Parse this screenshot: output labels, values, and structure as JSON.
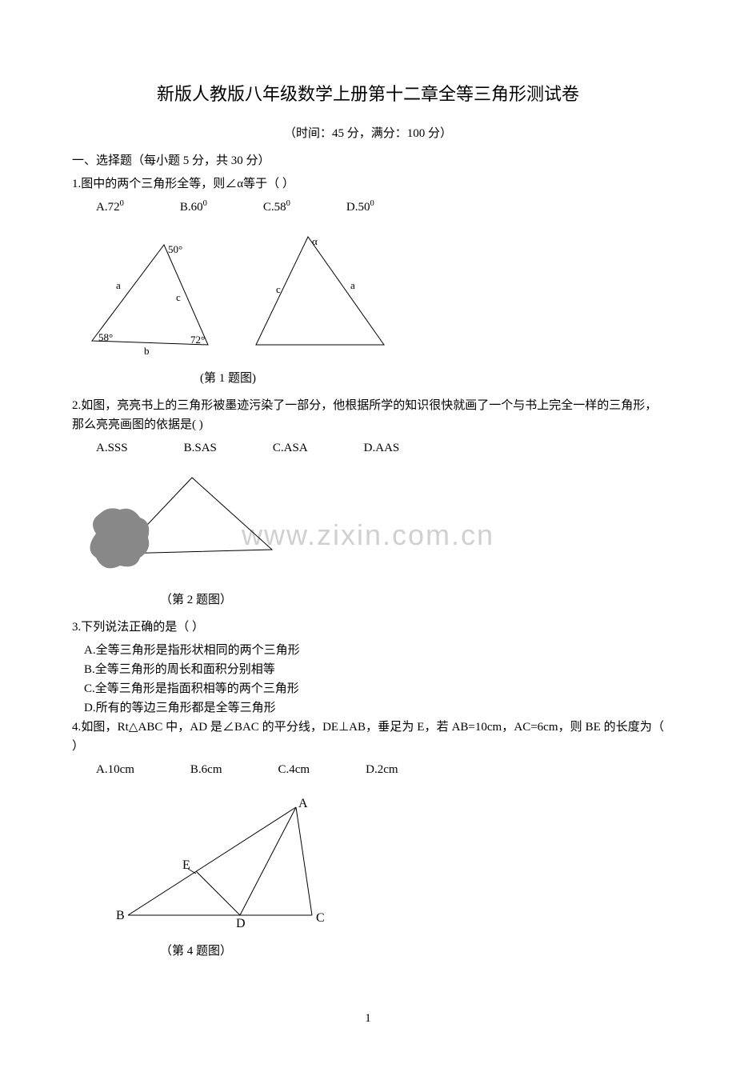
{
  "title": "新版人教版八年级数学上册第十二章全等三角形测试卷",
  "subtitle": "（时间：45 分，满分：100 分）",
  "section1": "一、选择题（每小题 5 分，共 30 分）",
  "q1": {
    "text": "1.图中的两个三角形全等，则∠α等于（  ）",
    "options": [
      "A.72⁰",
      "B.60⁰",
      "C.58⁰",
      "D.50⁰"
    ],
    "caption": "(第 1 题图)",
    "tri1": {
      "labels": {
        "top": "50°",
        "left": "58°",
        "right": "72°",
        "side_a": "a",
        "side_b": "b",
        "side_c": "c"
      }
    },
    "tri2": {
      "labels": {
        "top": "α",
        "side_c": "c",
        "side_a": "a"
      }
    }
  },
  "q2": {
    "text": "2.如图，亮亮书上的三角形被墨迹污染了一部分，他根据所学的知识很快就画了一个与书上完全一样的三角形，那么亮亮画图的依据是(   )",
    "options": [
      "A.SSS",
      "B.SAS",
      "C.ASA",
      "D.AAS"
    ],
    "caption": "（第 2 题图）"
  },
  "q3": {
    "text": "3.下列说法正确的是（    ）",
    "opts": [
      "A.全等三角形是指形状相同的两个三角形",
      "B.全等三角形的周长和面积分别相等",
      "C.全等三角形是指面积相等的两个三角形",
      "D.所有的等边三角形都是全等三角形"
    ]
  },
  "q4": {
    "text": "4.如图，Rt△ABC 中，AD 是∠BAC 的平分线，DE⊥AB，垂足为 E，若 AB=10cm，AC=6cm，则 BE 的长度为（   ）",
    "options": [
      "A.10cm",
      "B.6cm",
      "C.4cm",
      "D.2cm"
    ],
    "caption": "（第 4 题图）",
    "labels": {
      "A": "A",
      "B": "B",
      "C": "C",
      "D": "D",
      "E": "E"
    }
  },
  "watermark": "www.zixin.com.cn",
  "pageNum": "1",
  "colors": {
    "text": "#000000",
    "bg": "#ffffff",
    "watermark": "#d0d0d0",
    "blot": "#888888"
  }
}
